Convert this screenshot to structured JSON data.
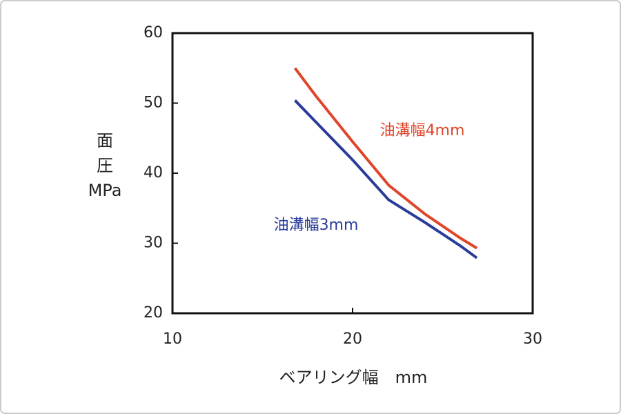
{
  "chart_data": {
    "type": "line",
    "x_label": "ベアリング幅　mm",
    "y_label": [
      "面",
      "圧",
      "MPa"
    ],
    "x": [
      16.8,
      18,
      20,
      22,
      24,
      26,
      26.9
    ],
    "series": [
      {
        "name": "油溝幅4mm",
        "color": "#e0452a",
        "values": [
          55,
          50.9,
          44.5,
          38.3,
          34.2,
          30.7,
          29.3
        ]
      },
      {
        "name": "油溝幅3mm",
        "color": "#2a3c9a",
        "values": [
          50.4,
          47.2,
          41.9,
          36.2,
          33.0,
          29.6,
          27.9
        ]
      }
    ],
    "xlim": [
      10,
      30
    ],
    "xticks": [
      10,
      20,
      30
    ],
    "ylim": [
      20,
      60
    ],
    "yticks": [
      20,
      30,
      40,
      50,
      60
    ],
    "grid": false
  }
}
